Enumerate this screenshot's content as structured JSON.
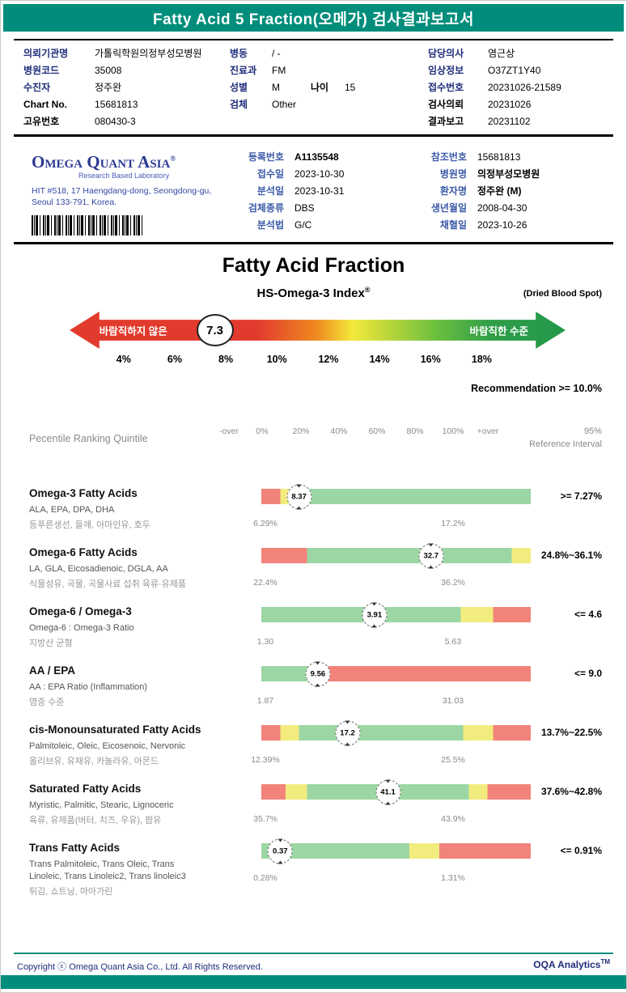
{
  "colors": {
    "teal": "#008D7B",
    "navy": "#1F2D7B",
    "blue": "#3C5BA8",
    "red": "#F2837B",
    "yellow": "#F2EC7E",
    "green": "#9CD6A4"
  },
  "header": {
    "title": "Fatty Acid 5 Fraction(오메가) 검사결과보고서"
  },
  "patient": {
    "left": [
      {
        "label": "의뢰기관명",
        "value": "가톨릭학원의정부성모병원"
      },
      {
        "label": "병원코드",
        "value": "35008"
      },
      {
        "label": "수진자",
        "value": "정주완"
      },
      {
        "label": "Chart No.",
        "value": "15681813"
      },
      {
        "label": "고유번호",
        "value": "080430-3"
      }
    ],
    "mid": [
      {
        "label": "병동",
        "value": "/ -"
      },
      {
        "label": "진료과",
        "value": "FM"
      },
      {
        "label": "성별",
        "value": "M"
      },
      {
        "label": "검체",
        "value": "Other"
      }
    ],
    "age_label": "나이",
    "age_value": "15",
    "right": [
      {
        "label": "담당의사",
        "value": "염근상"
      },
      {
        "label": "임상정보",
        "value": "O37ZT1Y40"
      },
      {
        "label": "접수번호",
        "value": "20231026-21589"
      },
      {
        "label": "검사의뢰",
        "value": "20231026"
      },
      {
        "label": "결과보고",
        "value": "20231102"
      }
    ]
  },
  "lab": {
    "logo": "Omega Quant Asia",
    "logo_reg": "®",
    "logo_sub": "Research Based Laboratory",
    "address1": "HIT #518, 17 Haengdang-dong, Seongdong-gu,",
    "address2": "Seoul 133-791, Korea.",
    "mid": [
      {
        "label": "등록번호",
        "value": "A1135548"
      },
      {
        "label": "접수일",
        "value": "2023-10-30"
      },
      {
        "label": "분석일",
        "value": "2023-10-31"
      },
      {
        "label": "검체종류",
        "value": "DBS"
      },
      {
        "label": "분석법",
        "value": "G/C"
      }
    ],
    "right": [
      {
        "label": "참조번호",
        "value": "15681813"
      },
      {
        "label": "병원명",
        "value": "의정부성모병원"
      },
      {
        "label": "환자명",
        "value": "정주완 (M)"
      },
      {
        "label": "생년월일",
        "value": "2008-04-30"
      },
      {
        "label": "채혈일",
        "value": "2023-10-26"
      }
    ]
  },
  "section": {
    "title": "Fatty Acid Fraction",
    "index_title": "HS-Omega-3 Index",
    "index_reg": "®",
    "sample_type": "(Dried Blood Spot)",
    "arrow_left_label": "바람직하지 않은",
    "arrow_right_label": "바람직한 수준",
    "index_value": "7.3",
    "scale": [
      "4%",
      "6%",
      "8%",
      "10%",
      "12%",
      "14%",
      "16%",
      "18%"
    ],
    "recommendation": "Recommendation  >= 10.0%"
  },
  "quintile": {
    "title": "Pecentile Ranking Quintile",
    "scale": [
      "-over",
      "0%",
      "20%",
      "40%",
      "60%",
      "80%",
      "100%",
      "+over"
    ],
    "ref_top": "95%",
    "ref_bottom": "Reference Interval"
  },
  "rows": [
    {
      "title": "Omega-3 Fatty Acids",
      "sub": "ALA, EPA, DPA, DHA",
      "kor": "등푸른생선, 들깨, 아마인유, 호두",
      "value": "8.37",
      "min": "6.29%",
      "max": "17.2%",
      "ref": ">= 7.27%",
      "bar": {
        "segments": [
          [
            "red",
            0,
            7
          ],
          [
            "yellow",
            7,
            13
          ],
          [
            "green",
            13,
            100
          ]
        ],
        "pos": 14
      }
    },
    {
      "title": "Omega-6 Fatty Acids",
      "sub": "LA, GLA, Eicosadienoic, DGLA, AA",
      "kor": "식물성유, 곡물, 곡물사료 섭취 육류·유제품",
      "value": "32.7",
      "min": "22.4%",
      "max": "36.2%",
      "ref": "24.8%~36.1%",
      "bar": {
        "segments": [
          [
            "red",
            0,
            17
          ],
          [
            "green",
            17,
            93
          ],
          [
            "yellow",
            93,
            100
          ]
        ],
        "pos": 63
      }
    },
    {
      "title": "Omega-6 / Omega-3",
      "sub": "Omega-6 : Omega-3 Ratio",
      "kor": "지방산 균형",
      "value": "3.91",
      "min": "1.30",
      "max": "5.63",
      "ref": "<= 4.6",
      "bar": {
        "segments": [
          [
            "green",
            0,
            74
          ],
          [
            "yellow",
            74,
            86
          ],
          [
            "red",
            86,
            100
          ]
        ],
        "pos": 42
      }
    },
    {
      "title": "AA / EPA",
      "sub": "AA : EPA Ratio (Inflammation)",
      "kor": "염증 수준",
      "value": "9.56",
      "min": "1.87",
      "max": "31.03",
      "ref": "<= 9.0",
      "bar": {
        "segments": [
          [
            "green",
            0,
            23
          ],
          [
            "red",
            23,
            100
          ]
        ],
        "pos": 21
      }
    },
    {
      "title": "cis-Monounsaturated Fatty Acids",
      "sub": "Palmitoleic, Oleic, Eicosenoic, Nervonic",
      "kor": "올리브유, 유채유, 카놀라유, 아몬드",
      "value": "17.2",
      "min": "12.39%",
      "max": "25.5%",
      "ref": "13.7%~22.5%",
      "bar": {
        "segments": [
          [
            "red",
            0,
            7
          ],
          [
            "yellow",
            7,
            14
          ],
          [
            "green",
            14,
            75
          ],
          [
            "yellow",
            75,
            86
          ],
          [
            "red",
            86,
            100
          ]
        ],
        "pos": 32
      }
    },
    {
      "title": "Saturated Fatty Acids",
      "sub": "Myristic, Palmitic, Stearic, Lignoceric",
      "kor": "육류, 유제품(버터, 치즈, 우유), 팜유",
      "value": "41.1",
      "min": "35.7%",
      "max": "43.9%",
      "ref": "37.6%~42.8%",
      "bar": {
        "segments": [
          [
            "red",
            0,
            9
          ],
          [
            "yellow",
            9,
            17
          ],
          [
            "green",
            17,
            77
          ],
          [
            "yellow",
            77,
            84
          ],
          [
            "red",
            84,
            100
          ]
        ],
        "pos": 47
      }
    },
    {
      "title": "Trans Fatty Acids",
      "sub": "Trans Palmitoleic, Trans Oleic, Trans",
      "sub2": "Linoleic, Trans Linoleic2, Trans linoleic3",
      "kor": "튀김, 쇼트닝, 마아가린",
      "value": "0.37",
      "min": "0.28%",
      "max": "1.31%",
      "ref": "<= 0.91%",
      "bar": {
        "segments": [
          [
            "green",
            0,
            55
          ],
          [
            "yellow",
            55,
            66
          ],
          [
            "red",
            66,
            100
          ]
        ],
        "pos": 7
      }
    }
  ],
  "footer": {
    "copyright": "Copyright ⓒ Omega Quant Asia Co., Ltd.  All Rights Reserved.",
    "brand": "OQA Analytics",
    "brand_tm": "TM"
  }
}
